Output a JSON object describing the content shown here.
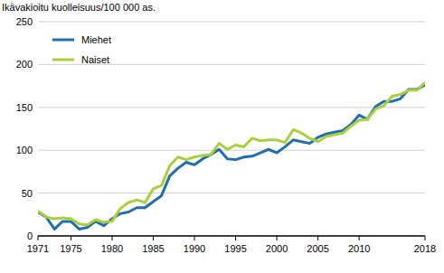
{
  "chart_data": {
    "type": "line",
    "y_label": "Ikävakioitu kuolleisuus/100 000 as.",
    "x": [
      1971,
      1972,
      1973,
      1974,
      1975,
      1976,
      1977,
      1978,
      1979,
      1980,
      1981,
      1982,
      1983,
      1984,
      1985,
      1986,
      1987,
      1988,
      1989,
      1990,
      1991,
      1992,
      1993,
      1994,
      1995,
      1996,
      1997,
      1998,
      1999,
      2000,
      2001,
      2002,
      2003,
      2004,
      2005,
      2006,
      2007,
      2008,
      2009,
      2010,
      2011,
      2012,
      2013,
      2014,
      2015,
      2016,
      2017,
      2018
    ],
    "series": [
      {
        "name": "Miehet",
        "color": "#1f6fae",
        "values": [
          28,
          22,
          8,
          17,
          17,
          8,
          10,
          17,
          12,
          20,
          26,
          28,
          33,
          33,
          40,
          47,
          70,
          79,
          86,
          83,
          90,
          95,
          101,
          90,
          89,
          92,
          93,
          97,
          101,
          97,
          104,
          112,
          110,
          108,
          115,
          119,
          121,
          123,
          130,
          141,
          136,
          151,
          157,
          157,
          160,
          171,
          171,
          176
        ]
      },
      {
        "name": "Naiset",
        "color": "#a9cf3b",
        "values": [
          29,
          22,
          20,
          21,
          20,
          14,
          13,
          19,
          16,
          17,
          32,
          39,
          42,
          39,
          55,
          59,
          82,
          92,
          89,
          92,
          94,
          95,
          108,
          101,
          106,
          104,
          114,
          111,
          112,
          112,
          109,
          124,
          120,
          114,
          110,
          116,
          118,
          120,
          128,
          135,
          136,
          148,
          152,
          163,
          165,
          170,
          170,
          179
        ]
      }
    ],
    "xlim": [
      1971,
      2018
    ],
    "xticks": [
      1971,
      1975,
      1980,
      1985,
      1990,
      1995,
      2000,
      2005,
      2010,
      2018
    ],
    "ylim": [
      0,
      250
    ],
    "yticks": [
      0,
      50,
      100,
      150,
      200,
      250
    ],
    "grid": true,
    "legend": "top-left"
  }
}
